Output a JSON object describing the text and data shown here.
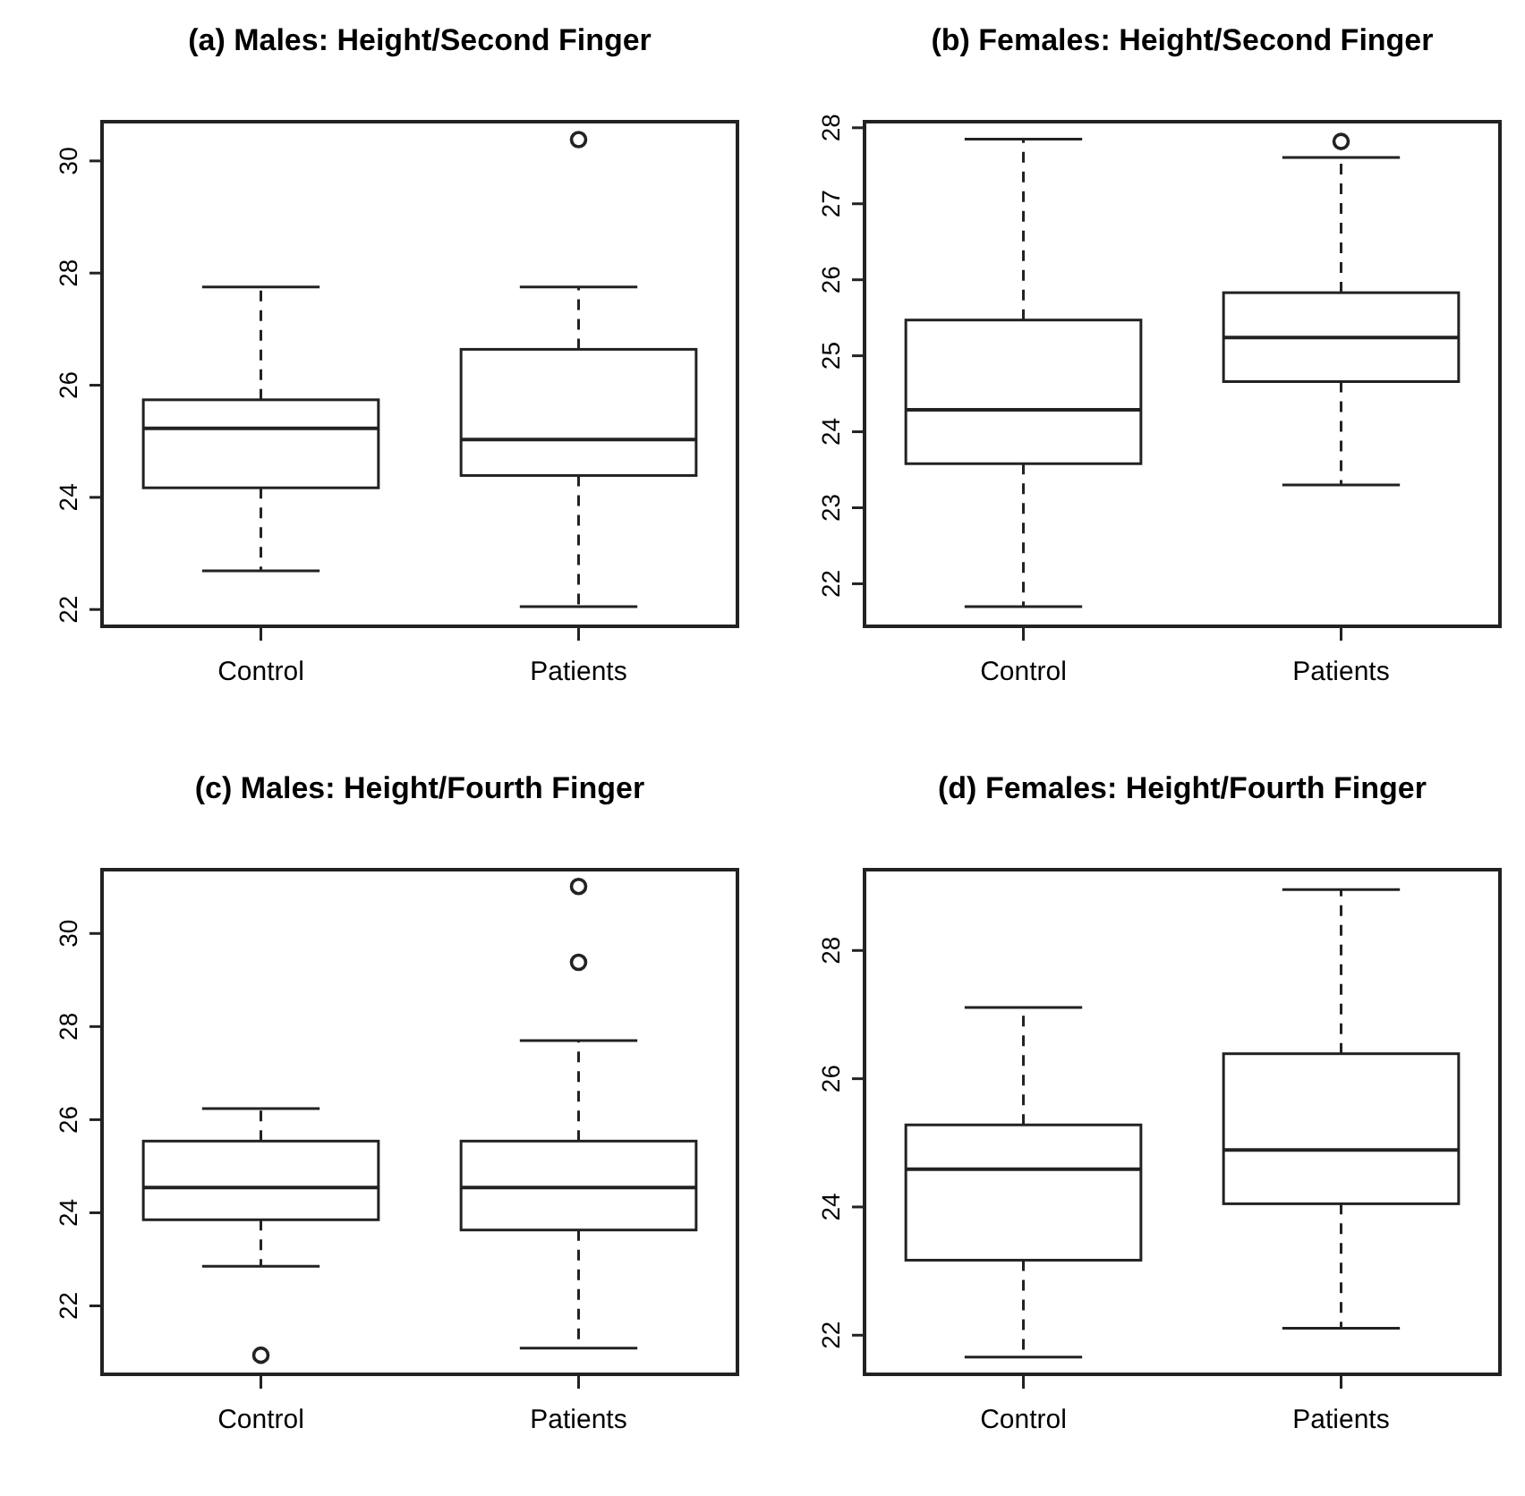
{
  "chart_data": [
    {
      "type": "box",
      "title": "(a) Males: Height/Second Finger",
      "categories": [
        "Control",
        "Patients"
      ],
      "ylim": [
        21.7,
        30.7
      ],
      "yticks": [
        22,
        24,
        26,
        28,
        30
      ],
      "boxes": [
        {
          "low": 22.69,
          "q1": 24.17,
          "median": 25.23,
          "q3": 25.74,
          "high": 27.75
        },
        {
          "low": 22.05,
          "q1": 24.39,
          "median": 25.03,
          "q3": 26.64,
          "high": 27.75,
          "outliers": [
            30.38
          ]
        }
      ]
    },
    {
      "type": "box",
      "title": "(b) Females: Height/Second Finger",
      "categories": [
        "Control",
        "Patients"
      ],
      "ylim": [
        21.44,
        28.08
      ],
      "yticks": [
        22,
        23,
        24,
        25,
        26,
        27,
        28
      ],
      "boxes": [
        {
          "low": 21.7,
          "q1": 23.58,
          "median": 24.29,
          "q3": 25.47,
          "high": 27.85
        },
        {
          "low": 23.3,
          "q1": 24.66,
          "median": 25.24,
          "q3": 25.83,
          "high": 27.61,
          "outliers": [
            27.82
          ]
        }
      ]
    },
    {
      "type": "box",
      "title": "(c) Males: Height/Fourth Finger",
      "categories": [
        "Control",
        "Patients"
      ],
      "ylim": [
        20.53,
        31.37
      ],
      "yticks": [
        22,
        24,
        26,
        28,
        30
      ],
      "boxes": [
        {
          "low": 22.85,
          "q1": 23.85,
          "median": 24.54,
          "q3": 25.54,
          "high": 26.24,
          "outliers": [
            20.94
          ]
        },
        {
          "low": 21.09,
          "q1": 23.63,
          "median": 24.54,
          "q3": 25.54,
          "high": 27.7,
          "outliers": [
            29.38,
            31.01
          ]
        }
      ]
    },
    {
      "type": "box",
      "title": "(d) Females: Height/Fourth Finger",
      "categories": [
        "Control",
        "Patients"
      ],
      "ylim": [
        21.39,
        29.26
      ],
      "yticks": [
        22,
        24,
        26,
        28
      ],
      "boxes": [
        {
          "low": 21.66,
          "q1": 23.17,
          "median": 24.59,
          "q3": 25.28,
          "high": 27.11
        },
        {
          "low": 22.11,
          "q1": 24.05,
          "median": 24.89,
          "q3": 26.39,
          "high": 28.95
        }
      ]
    }
  ]
}
